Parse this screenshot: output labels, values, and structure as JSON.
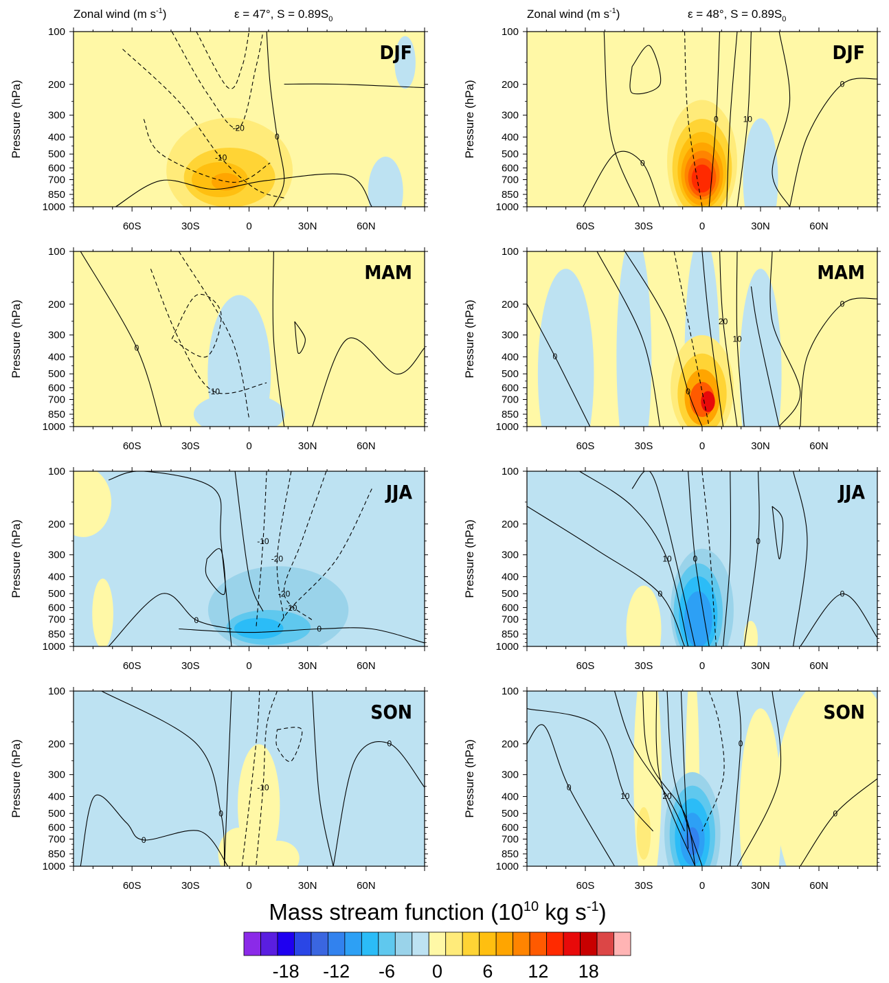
{
  "panels": [
    {
      "col": 0,
      "row": 0,
      "season": "DJF",
      "title_left": "Zonal wind (m s",
      "title_left_sup": "-1",
      "title_left_end": ")",
      "title_right": "ε = 47°, S = 0.89S",
      "title_right_sub": "0"
    },
    {
      "col": 1,
      "row": 0,
      "season": "DJF",
      "title_left": "Zonal wind (m s",
      "title_left_sup": "-1",
      "title_left_end": ")",
      "title_right": "ε = 48°, S = 0.89S",
      "title_right_sub": "0"
    },
    {
      "col": 0,
      "row": 1,
      "season": "MAM"
    },
    {
      "col": 1,
      "row": 1,
      "season": "MAM"
    },
    {
      "col": 0,
      "row": 2,
      "season": "JJA"
    },
    {
      "col": 1,
      "row": 2,
      "season": "JJA"
    },
    {
      "col": 0,
      "row": 3,
      "season": "SON"
    },
    {
      "col": 1,
      "row": 3,
      "season": "SON"
    }
  ],
  "axes": {
    "y_label": "Pressure (hPa)",
    "y_ticks": [
      100,
      200,
      300,
      400,
      500,
      600,
      700,
      850,
      1000
    ],
    "x_tick_labels": [
      "60S",
      "30S",
      "0",
      "30N",
      "60N"
    ],
    "x_tick_values": [
      -60,
      -30,
      0,
      30,
      60
    ],
    "x_range": [
      -90,
      90
    ],
    "y_range": [
      1000,
      100
    ],
    "y_scale": "log"
  },
  "colorbar": {
    "title": "Mass stream function (10",
    "title_sup": "10",
    "title_end": " kg s",
    "title_sup2": "-1",
    "title_close": ")",
    "labels": [
      "-18",
      "-12",
      "-6",
      "0",
      "6",
      "12",
      "18"
    ],
    "colors": [
      "#8b2ae8",
      "#5a1ee0",
      "#1f00f0",
      "#2a46e6",
      "#3a66e0",
      "#3282ee",
      "#2da0f5",
      "#2bbcf7",
      "#5fc8ee",
      "#9ad3ea",
      "#bde2f2",
      "#fff8a6",
      "#ffeb7a",
      "#ffd435",
      "#ffbf10",
      "#ffa500",
      "#ff8400",
      "#ff5a00",
      "#ff2a00",
      "#e80a0a",
      "#c80000",
      "#dc4646",
      "#ffb4b4"
    ]
  },
  "chart_data": {
    "type": "heatmap",
    "description_fields": "Filled: mass stream function; contours: zonal wind",
    "contour_labels_seen": [
      "0",
      "10",
      "20",
      "-10",
      "-20"
    ]
  }
}
